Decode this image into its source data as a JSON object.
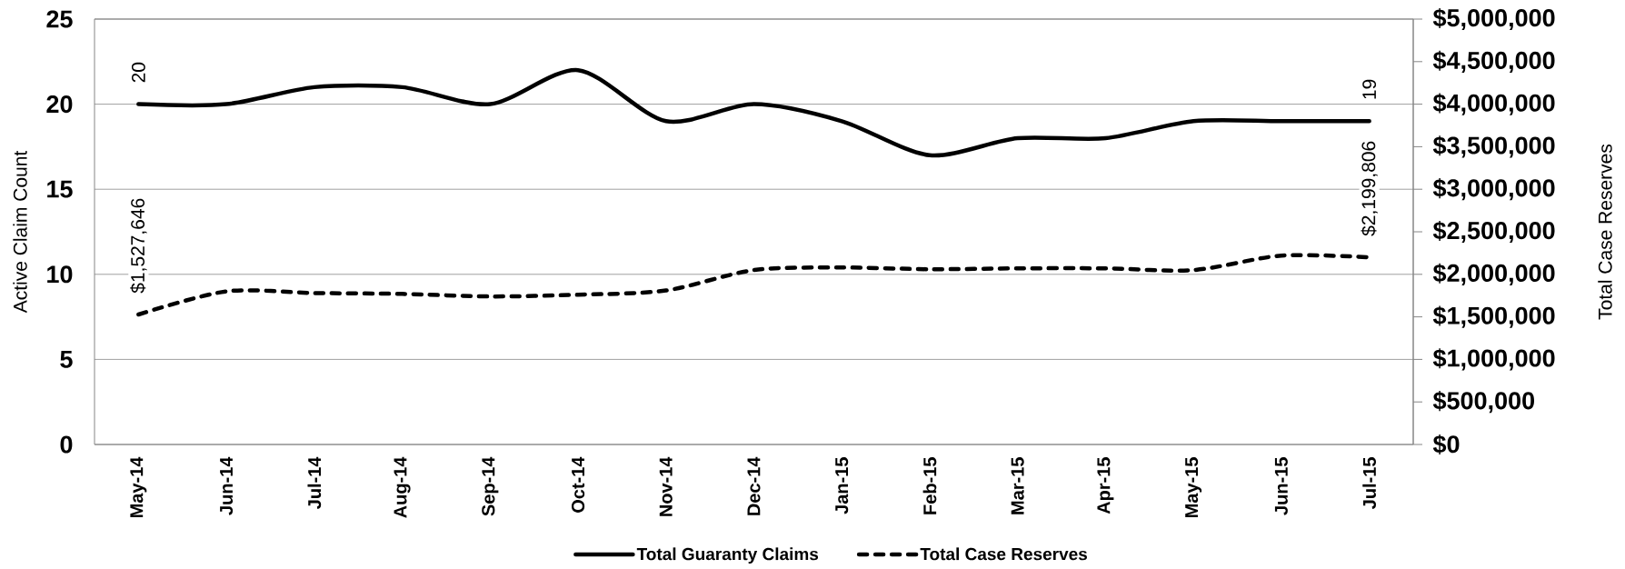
{
  "chart_data": {
    "type": "line",
    "categories": [
      "May-14",
      "Jun-14",
      "Jul-14",
      "Aug-14",
      "Sep-14",
      "Oct-14",
      "Nov-14",
      "Dec-14",
      "Jan-15",
      "Feb-15",
      "Mar-15",
      "Apr-15",
      "May-15",
      "Jun-15",
      "Jul-15"
    ],
    "ylabel": "Active Claim Count",
    "y2label": "Total Case Reserves",
    "ylim": [
      0,
      25
    ],
    "yticks": [
      0,
      5,
      10,
      15,
      20,
      25
    ],
    "y2lim": [
      0,
      5000000
    ],
    "y2ticks": [
      {
        "value": 0,
        "label": "$0"
      },
      {
        "value": 500000,
        "label": "$500,000"
      },
      {
        "value": 1000000,
        "label": "$1,000,000"
      },
      {
        "value": 1500000,
        "label": "$1,500,000"
      },
      {
        "value": 2000000,
        "label": "$2,000,000"
      },
      {
        "value": 2500000,
        "label": "$2,500,000"
      },
      {
        "value": 3000000,
        "label": "$3,000,000"
      },
      {
        "value": 3500000,
        "label": "$3,500,000"
      },
      {
        "value": 4000000,
        "label": "$4,000,000"
      },
      {
        "value": 4500000,
        "label": "$4,500,000"
      },
      {
        "value": 5000000,
        "label": "$5,000,000"
      }
    ],
    "grid": "y",
    "legend": "bottom",
    "marker": "none",
    "series": [
      {
        "name": "Total Guaranty Claims",
        "color": "#000000",
        "line_style": "solid",
        "values": [
          20,
          20,
          21,
          21,
          20,
          22,
          19,
          20,
          19,
          17,
          18,
          18,
          19,
          19,
          19
        ],
        "value_labels": [
          "20",
          null,
          null,
          null,
          null,
          null,
          null,
          null,
          null,
          null,
          null,
          null,
          null,
          null,
          "19"
        ]
      },
      {
        "name": "Total Case Reserves",
        "color": "#000000",
        "line_style": "dashed",
        "axis": "y2",
        "values": [
          1527646,
          1800000,
          1780000,
          1770000,
          1740000,
          1760000,
          1810000,
          2050000,
          2080000,
          2060000,
          2070000,
          2070000,
          2050000,
          2220000,
          2199806
        ],
        "value_labels": [
          "$1,527,646",
          null,
          null,
          null,
          null,
          null,
          null,
          null,
          null,
          null,
          null,
          null,
          null,
          null,
          "$2,199,806"
        ]
      }
    ]
  }
}
